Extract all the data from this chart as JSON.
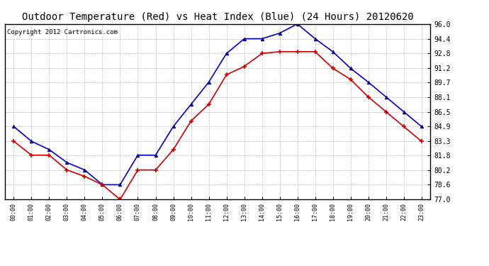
{
  "title": "Outdoor Temperature (Red) vs Heat Index (Blue) (24 Hours) 20120620",
  "copyright": "Copyright 2012 Cartronics.com",
  "hours": [
    "00:00",
    "01:00",
    "02:00",
    "03:00",
    "04:00",
    "05:00",
    "06:00",
    "07:00",
    "08:00",
    "09:00",
    "10:00",
    "11:00",
    "12:00",
    "13:00",
    "14:00",
    "15:00",
    "16:00",
    "17:00",
    "18:00",
    "19:00",
    "20:00",
    "21:00",
    "22:00",
    "23:00"
  ],
  "red_temp": [
    83.3,
    81.8,
    81.8,
    80.2,
    79.5,
    78.6,
    77.0,
    80.2,
    80.2,
    82.4,
    85.5,
    87.3,
    90.5,
    91.4,
    92.8,
    93.0,
    93.0,
    93.0,
    91.2,
    90.0,
    88.1,
    86.5,
    84.9,
    83.3
  ],
  "blue_heat": [
    84.9,
    83.3,
    82.4,
    81.0,
    80.2,
    78.6,
    78.6,
    81.8,
    81.8,
    84.9,
    87.3,
    89.7,
    92.8,
    94.4,
    94.4,
    95.0,
    96.0,
    94.4,
    93.0,
    91.2,
    89.7,
    88.1,
    86.5,
    84.9
  ],
  "ylim": [
    77.0,
    96.0
  ],
  "yticks": [
    77.0,
    78.6,
    80.2,
    81.8,
    83.3,
    84.9,
    86.5,
    88.1,
    89.7,
    91.2,
    92.8,
    94.4,
    96.0
  ],
  "red_color": "#cc0000",
  "blue_color": "#0000cc",
  "bg_color": "#ffffff",
  "grid_color": "#aaaaaa",
  "title_fontsize": 10,
  "copyright_fontsize": 6.5,
  "tick_fontsize": 7,
  "xtick_fontsize": 6
}
